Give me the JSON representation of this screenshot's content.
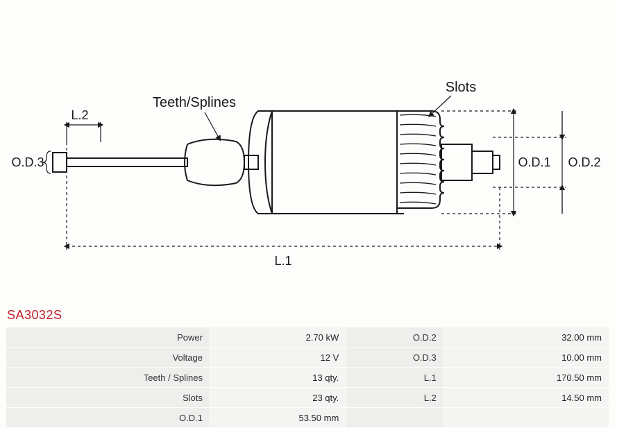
{
  "part_number": "SA3032S",
  "diagram": {
    "labels": {
      "teeth": "Teeth/Splines",
      "slots": "Slots",
      "L1": "L.1",
      "L2": "L.2",
      "OD1": "O.D.1",
      "OD2": "O.D.2",
      "OD3": "O.D.3"
    },
    "colors": {
      "stroke": "#1a1a1a",
      "bg": "#fdfdfb",
      "fill": "#ffffff"
    }
  },
  "spec_rows": [
    {
      "l1": "Power",
      "v1": "2.70 kW",
      "l2": "O.D.2",
      "v2": "32.00 mm"
    },
    {
      "l1": "Voltage",
      "v1": "12 V",
      "l2": "O.D.3",
      "v2": "10.00 mm"
    },
    {
      "l1": "Teeth / Splines",
      "v1": "13 qty.",
      "l2": "L.1",
      "v2": "170.50 mm"
    },
    {
      "l1": "Slots",
      "v1": "23 qty.",
      "l2": "L.2",
      "v2": "14.50 mm"
    },
    {
      "l1": "O.D.1",
      "v1": "53.50 mm",
      "l2": "",
      "v2": ""
    }
  ]
}
